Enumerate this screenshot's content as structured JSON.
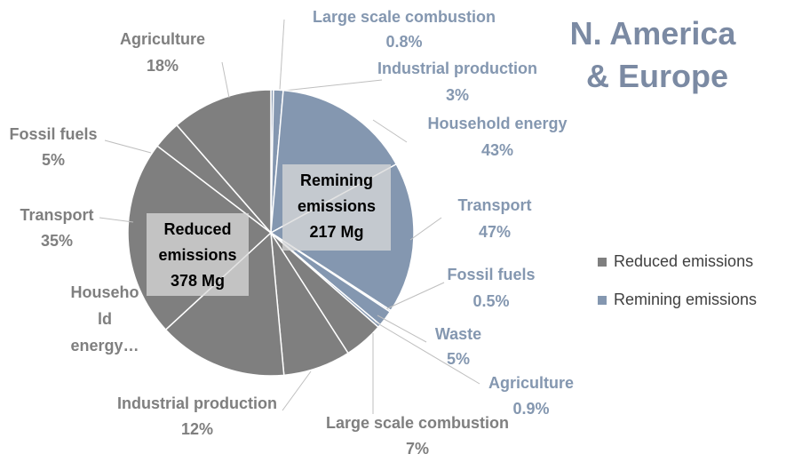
{
  "chart_data": {
    "type": "pie",
    "title": "N. America & Europe",
    "series": [
      {
        "name": "Remining emissions",
        "color": "#8497b0",
        "total": 217,
        "total_label": "217 Mg",
        "categories": [
          "Large scale combustion",
          "Industrial production",
          "Household energy",
          "Transport",
          "Fossil fuels",
          "Waste",
          "Agriculture"
        ],
        "values": [
          0.8,
          3,
          43,
          47,
          0.5,
          5,
          0.9
        ],
        "value_labels": [
          "0.8%",
          "3%",
          "43%",
          "47%",
          "0.5%",
          "5%",
          "0.9%"
        ]
      },
      {
        "name": "Reduced emissions",
        "color": "#7f7f7f",
        "total": 378,
        "total_label": "378 Mg",
        "categories": [
          "Large scale combustion",
          "Industrial production",
          "Household energy…",
          "Transport",
          "Fossil fuels",
          "Agriculture"
        ],
        "values": [
          7,
          12,
          23,
          35,
          5,
          18
        ],
        "value_labels": [
          "7%",
          "12%",
          null,
          "35%",
          "5%",
          "18%"
        ]
      }
    ],
    "legend": "right"
  }
}
